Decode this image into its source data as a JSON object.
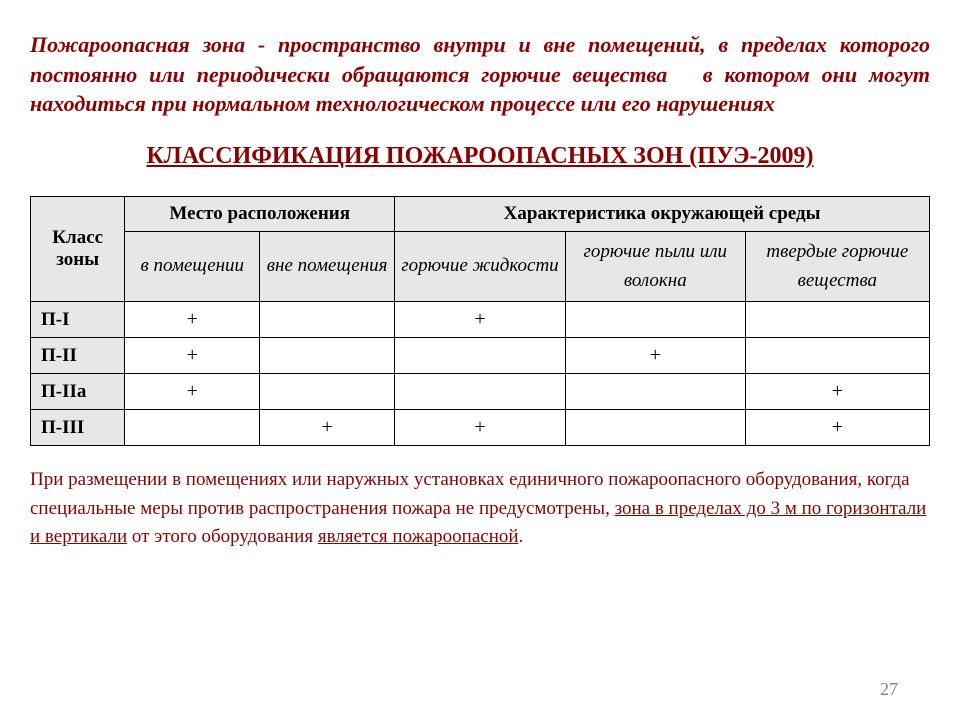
{
  "definition": {
    "term": "Пожароопасная зона",
    "dash": " - ",
    "rest_a": "пространство внутри и вне помещений, в пределах которого постоянно или периодически обращаются горючие вещества",
    "gap": "   ",
    "rest_b": "в котором они могут находиться при нормальном технологическом процессе или его нарушениях"
  },
  "heading": "КЛАССИФИКАЦИЯ  ПОЖАРООПАСНЫХ  ЗОН (ПУЭ-2009)",
  "colors": {
    "maroon": "#8b0000",
    "header_bg": "#e7e7e7",
    "border": "#000000",
    "pagenum": "#808080"
  },
  "table": {
    "head": {
      "col1": "Класс зоны",
      "group1": "Место расположения",
      "group2": "Характеристика окружающей  среды",
      "sub": {
        "s1": "в помещении",
        "s2": "вне помещения",
        "s3": "горючие жидкости",
        "s4": "горючие пыли  или волокна",
        "s5": "твердые горючие вещества"
      }
    },
    "rows": [
      {
        "label": "П-I",
        "cells": [
          "+",
          "",
          "+",
          "",
          ""
        ]
      },
      {
        "label": "П-II",
        "cells": [
          "+",
          "",
          "",
          "+",
          ""
        ]
      },
      {
        "label": "П-IIа",
        "cells": [
          "+",
          "",
          "",
          "",
          "+"
        ]
      },
      {
        "label": "П-III",
        "cells": [
          "",
          "+",
          "+",
          "",
          "+"
        ]
      }
    ]
  },
  "footnote": {
    "p1": "При размещении в помещениях или наружных установках единичного пожароопасного оборудования, когда специальные меры против распространения пожара не предусмотрены, ",
    "u1": "зона в пределах до 3 м по горизонтали и вертикали",
    "p2": " от этого оборудования ",
    "u2": "является пожароопасной",
    "p3": "."
  },
  "page_number": "27"
}
